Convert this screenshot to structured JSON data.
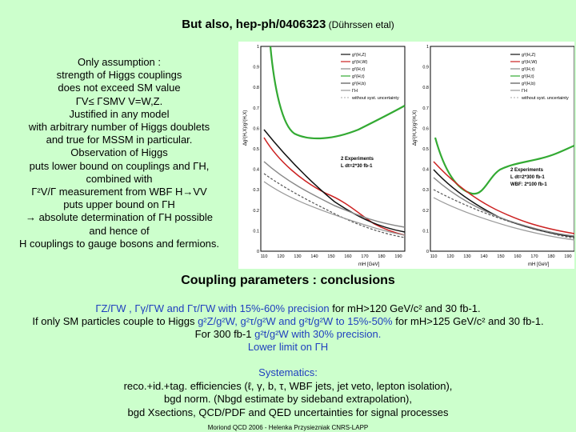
{
  "title": {
    "main": "But also, hep-ph/0406323",
    "sub": " (Dührssen etal)"
  },
  "left_text": [
    "Only assumption :",
    "strength of Higgs couplings",
    "does not exceed SM value",
    "ΓV≤ ΓSMV      V=W,Z.",
    "Justified in any model",
    "with arbitrary number of Higgs doublets",
    "and true for MSSM in particular.",
    "Observation of Higgs",
    "puts lower bound on couplings and ΓH,",
    "combined with",
    "Γ²V/Γ measurement from WBF H→VV",
    "puts upper bound on ΓH",
    "→ absolute determination of ΓH possible",
    "and hence of",
    "H couplings to gauge bosons and fermions."
  ],
  "plots": [
    {
      "ylabel": "Δg²(H,X)/g²(H,X)",
      "xlabel": "mH [GeV]",
      "xticks": [
        "110",
        "120",
        "130",
        "140",
        "150",
        "160",
        "170",
        "180",
        "190"
      ],
      "yticks": [
        "1",
        "0.9",
        "0.8",
        "0.7",
        "0.6",
        "0.5",
        "0.4",
        "0.3",
        "0.2",
        "0.1",
        "0"
      ],
      "legend": [
        "g²(H,Z)",
        "g²(H,W)",
        "g²(H,τ)",
        "g²(H,t)",
        "g²(H,b)",
        "ΓH",
        "without syst. uncertainty"
      ],
      "box": [
        "2 Experiments",
        "L dt=2*30 fb-1"
      ]
    },
    {
      "ylabel": "Δg²(H,X)/g²(H,X)",
      "xlabel": "mH [GeV]",
      "xticks": [
        "110",
        "120",
        "130",
        "140",
        "150",
        "160",
        "170",
        "180",
        "190"
      ],
      "yticks": [
        "1",
        "0.9",
        "0.8",
        "0.7",
        "0.6",
        "0.5",
        "0.4",
        "0.3",
        "0.2",
        "0.1",
        "0"
      ],
      "legend": [
        "g²(H,Z)",
        "g²(H,W)",
        "g²(H,τ)",
        "g²(H,t)",
        "g²(H,b)",
        "ΓH",
        "without syst. uncertainty"
      ],
      "box": [
        "2 Experiments",
        "L dt=2*300 fb-1",
        "WBF: 2*100 fb-1"
      ]
    }
  ],
  "colors": {
    "background": "#ccffcc",
    "gz": "#111111",
    "gw": "#cc2222",
    "gtau": "#888888",
    "gt": "#33aa33",
    "gb": "#555555",
    "gh": "#999999",
    "blue": "#1f3fbf"
  },
  "heading": "Coupling parameters : conclusions",
  "conclusions": {
    "l1_a": "ΓZ/ΓW , Γγ/ΓW and Γτ/ΓW with 15%-60% precision",
    "l1_b": " for mH>120 GeV/c²  and 30 fb-1.",
    "l2_a": "If only SM particles couple to Higgs ",
    "l2_b": "g²Z/g²W, g²τ/g²W  and g²t/g²W  to 15%-50%",
    "l2_c": " for mH>125 GeV/c² and 30 fb-1.",
    "l3_a": "For 300 fb-1 ",
    "l3_b": "g²t/g²W with 30% precision.",
    "l4": "Lower limit on ΓH"
  },
  "systematics": [
    "Systematics:",
    "reco.+id.+tag. efficiencies (ℓ, γ, b, τ, WBF jets, jet veto, lepton isolation),",
    "bgd norm. (Nbgd estimate by sideband extrapolation),",
    "bgd Xsections, QCD/PDF and QED uncertainties for signal processes"
  ],
  "footer": "Moriond QCD 2006 - Helenka Przysiezniak CNRS-LAPP"
}
